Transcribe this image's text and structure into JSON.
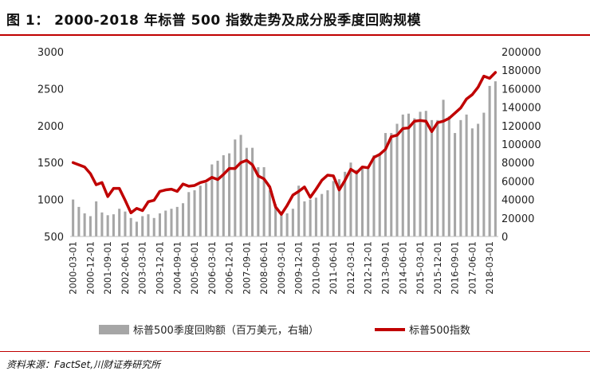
{
  "figure": {
    "title": "图 1： 2000-2018 年标普 500 指数走势及成分股季度回购规模",
    "source": "资料来源：FactSet,川财证券研究所"
  },
  "chart_data": {
    "type": "bar+line",
    "title": "2000-2018 年标普 500 指数走势及成分股季度回购规模",
    "categories": [
      "2000-03-01",
      "2000-06-01",
      "2000-09-01",
      "2000-12-01",
      "2001-03-01",
      "2001-06-01",
      "2001-09-01",
      "2001-12-01",
      "2002-03-01",
      "2002-06-01",
      "2002-09-01",
      "2002-12-01",
      "2003-03-01",
      "2003-06-01",
      "2003-09-01",
      "2003-12-01",
      "2004-03-01",
      "2004-06-01",
      "2004-09-01",
      "2004-12-01",
      "2005-03-01",
      "2005-06-01",
      "2005-09-01",
      "2005-12-01",
      "2006-03-01",
      "2006-06-01",
      "2006-09-01",
      "2006-12-01",
      "2007-03-01",
      "2007-06-01",
      "2007-09-01",
      "2007-12-01",
      "2008-03-01",
      "2008-06-01",
      "2008-09-01",
      "2008-12-01",
      "2009-03-01",
      "2009-06-01",
      "2009-09-01",
      "2009-12-01",
      "2010-03-01",
      "2010-06-01",
      "2010-09-01",
      "2010-12-01",
      "2011-03-01",
      "2011-06-01",
      "2011-09-01",
      "2011-12-01",
      "2012-03-01",
      "2012-06-01",
      "2012-09-01",
      "2012-12-01",
      "2013-03-01",
      "2013-06-01",
      "2013-09-01",
      "2013-12-01",
      "2014-03-01",
      "2014-06-01",
      "2014-09-01",
      "2014-12-01",
      "2015-03-01",
      "2015-06-01",
      "2015-09-01",
      "2015-12-01",
      "2016-03-01",
      "2016-06-01",
      "2016-09-01",
      "2016-12-01",
      "2017-03-01",
      "2017-06-01",
      "2017-09-01",
      "2017-12-01",
      "2018-03-01",
      "2018-06-01"
    ],
    "x_tick_labels": [
      "2000-03-01",
      "2000-12-01",
      "2001-09-01",
      "2002-06-01",
      "2003-03-01",
      "2003-12-01",
      "2004-09-01",
      "2005-06-01",
      "2006-03-01",
      "2006-12-01",
      "2007-09-01",
      "2008-06-01",
      "2009-03-01",
      "2009-12-01",
      "2010-09-01",
      "2011-06-01",
      "2012-03-01",
      "2012-12-01",
      "2013-09-01",
      "2014-06-01",
      "2015-03-01",
      "2015-12-01",
      "2016-09-01",
      "2017-06-01",
      "2018-03-01"
    ],
    "series": [
      {
        "name": "标普500季度回购额（百万美元，右轴）",
        "type": "bar",
        "axis": "right",
        "color": "#a6a6a6",
        "values": [
          40000,
          32000,
          25000,
          22000,
          38000,
          26000,
          23000,
          24000,
          30000,
          27000,
          20000,
          16000,
          22000,
          24000,
          20000,
          25000,
          28000,
          30000,
          32000,
          36000,
          48000,
          50000,
          55000,
          58000,
          78000,
          82000,
          88000,
          90000,
          105000,
          110000,
          96000,
          96000,
          75000,
          75000,
          50000,
          35000,
          27000,
          25000,
          30000,
          55000,
          38000,
          40000,
          42000,
          46000,
          50000,
          60000,
          62000,
          70000,
          80000,
          72000,
          76000,
          74000,
          88000,
          90000,
          112000,
          112000,
          122000,
          132000,
          133000,
          128000,
          135000,
          136000,
          126000,
          126000,
          148000,
          130000,
          112000,
          126000,
          132000,
          117000,
          122000,
          134000,
          163000,
          168000
        ]
      },
      {
        "name": "标普500指数",
        "type": "line",
        "axis": "left",
        "color": "#c00000",
        "values": [
          1500,
          1470,
          1440,
          1350,
          1200,
          1230,
          1040,
          1150,
          1150,
          990,
          820,
          880,
          850,
          970,
          990,
          1110,
          1130,
          1140,
          1110,
          1210,
          1180,
          1190,
          1230,
          1250,
          1300,
          1270,
          1340,
          1420,
          1420,
          1500,
          1530,
          1470,
          1320,
          1280,
          1170,
          900,
          800,
          920,
          1060,
          1110,
          1170,
          1030,
          1140,
          1260,
          1330,
          1320,
          1130,
          1260,
          1410,
          1360,
          1440,
          1430,
          1570,
          1610,
          1680,
          1850,
          1870,
          1960,
          1970,
          2060,
          2070,
          2060,
          1920,
          2040,
          2060,
          2100,
          2170,
          2240,
          2360,
          2420,
          2520,
          2670,
          2640,
          2720
        ]
      }
    ],
    "y_left": {
      "min": 500,
      "max": 3000,
      "ticks": [
        500,
        1000,
        1500,
        2000,
        2500,
        3000
      ]
    },
    "y_right": {
      "min": 0,
      "max": 200000,
      "ticks": [
        0,
        20000,
        40000,
        60000,
        80000,
        100000,
        120000,
        140000,
        160000,
        180000,
        200000
      ]
    },
    "legend": [
      "标普500季度回购额（百万美元，右轴）",
      "标普500指数"
    ],
    "legend_position": "bottom"
  }
}
